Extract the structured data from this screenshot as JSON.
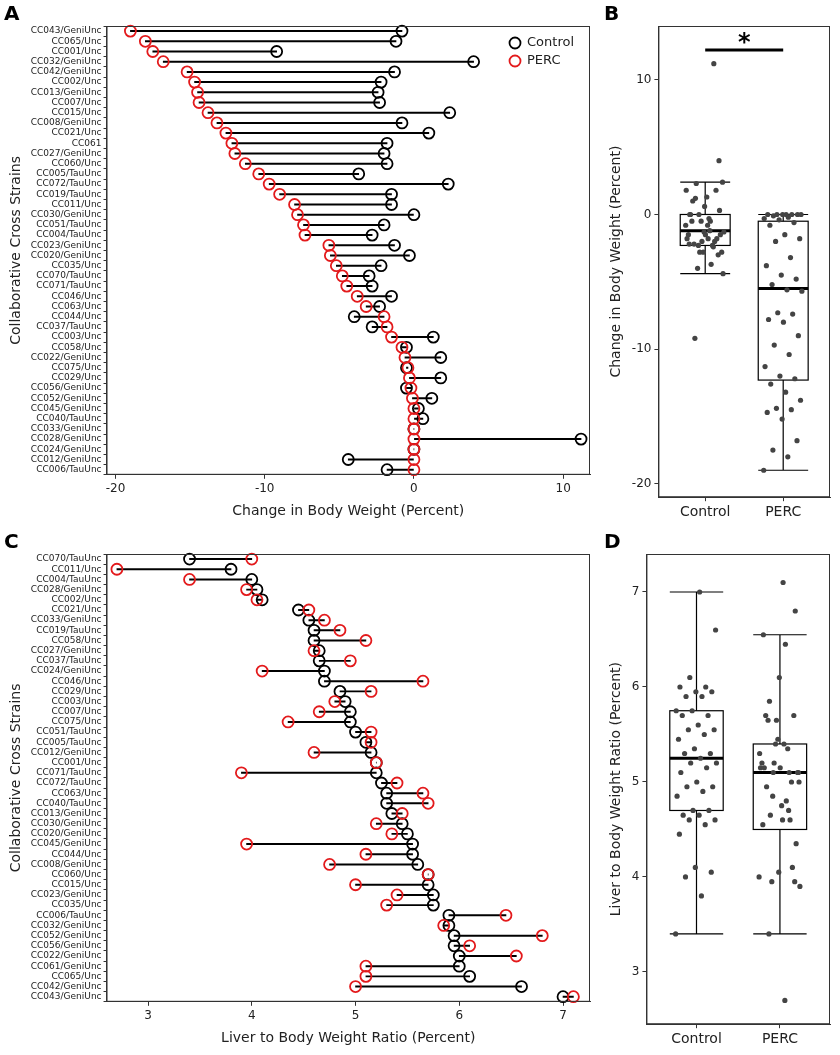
{
  "chart_data": [
    {
      "type": "dumbbell",
      "title": "A",
      "orientation": "horizontal",
      "grid": false,
      "legend": "upper right",
      "x_label": "Change in Body Weight (Percent)",
      "y_label": "Collaborative Cross Strains",
      "categories": [
        "CC043/GeniUnc",
        "CC065/Unc",
        "CC001/Unc",
        "CC032/GeniUnc",
        "CC042/GeniUnc",
        "CC002/Unc",
        "CC013/GeniUnc",
        "CC007/Unc",
        "CC015/Unc",
        "CC008/GeniUnc",
        "CC021/Unc",
        "CC061",
        "CC027/GeniUnc",
        "CC060/Unc",
        "CC005/TauUnc",
        "CC072/TauUnc",
        "CC019/TauUnc",
        "CC011/Unc",
        "CC030/GeniUnc",
        "CC051/TauUnc",
        "CC004/TauUnc",
        "CC023/GeniUnc",
        "CC020/GeniUnc",
        "CC035/Unc",
        "CC070/TauUnc",
        "CC071/TauUnc",
        "CC046/Unc",
        "CC063/Unc",
        "CC044/Unc",
        "CC037/TauUnc",
        "CC003/Unc",
        "CC058/Unc",
        "CC022/GeniUnc",
        "CC075/Unc",
        "CC029/Unc",
        "CC056/GeniUnc",
        "CC052/GeniUnc",
        "CC045/GeniUnc",
        "CC040/TauUnc",
        "CC033/GeniUnc",
        "CC028/GeniUnc",
        "CC024/GeniUnc",
        "CC012/GeniUnc",
        "CC006/TauUnc"
      ],
      "series": [
        {
          "name": "Control",
          "color": "#000000",
          "marker": "open circle",
          "values": [
            -0.8,
            -1.2,
            -9.2,
            4.0,
            -1.3,
            -2.2,
            -2.4,
            -2.3,
            2.4,
            -0.8,
            1.0,
            -1.8,
            -2.0,
            -1.8,
            -3.7,
            2.3,
            -1.5,
            -1.5,
            0.0,
            -2.0,
            -2.8,
            -1.3,
            -0.3,
            -2.2,
            -3.0,
            -2.8,
            -1.5,
            -2.3,
            -4.0,
            -2.8,
            1.3,
            -0.5,
            1.8,
            -0.5,
            1.8,
            -0.5,
            1.2,
            0.3,
            0.6,
            0.0,
            11.2,
            0.0,
            -4.4,
            -1.8
          ]
        },
        {
          "name": "PERC",
          "color": "#e31a1c",
          "marker": "open circle",
          "values": [
            -19.0,
            -18.0,
            -17.5,
            -16.8,
            -15.2,
            -14.7,
            -14.5,
            -14.4,
            -13.8,
            -13.2,
            -12.6,
            -12.2,
            -12.0,
            -11.3,
            -10.4,
            -9.7,
            -9.0,
            -8.0,
            -7.8,
            -7.4,
            -7.3,
            -5.7,
            -5.6,
            -5.2,
            -4.8,
            -4.5,
            -3.8,
            -3.2,
            -2.0,
            -1.8,
            -1.5,
            -0.8,
            -0.6,
            -0.4,
            -0.3,
            -0.2,
            -0.1,
            0.0,
            0.0,
            0.0,
            0.0,
            0.0,
            0.0,
            0.0
          ]
        }
      ],
      "xlim": [
        -20.6,
        11.8
      ],
      "xticks": [
        -20,
        -10,
        0,
        10
      ]
    },
    {
      "type": "box",
      "title": "B",
      "grid": false,
      "color": "#444444",
      "y_label": "Change in Body Weight (Percent)",
      "categories": [
        "Control",
        "PERC"
      ],
      "boxes": [
        {
          "whisker_low": -4.4,
          "q1": -2.3,
          "median": -1.2,
          "q3": 0.0,
          "whisker_high": 2.4,
          "points": [
            -0.8,
            -1.2,
            -9.2,
            4.0,
            -1.3,
            -2.2,
            -2.4,
            -2.3,
            2.4,
            -0.8,
            1.0,
            -1.8,
            -2.0,
            -1.8,
            -3.7,
            2.3,
            -1.5,
            -1.5,
            0.0,
            -2.0,
            -2.8,
            -1.3,
            -0.3,
            -2.2,
            -3.0,
            -2.8,
            -1.5,
            -2.3,
            -4.0,
            -2.8,
            1.3,
            -0.5,
            1.8,
            -0.5,
            1.8,
            -0.5,
            1.2,
            0.3,
            0.6,
            0.0,
            11.2,
            0.0,
            -4.4,
            -1.8
          ]
        },
        {
          "whisker_low": -19.0,
          "q1": -12.3,
          "median": -5.5,
          "q3": -0.5,
          "whisker_high": 0.0,
          "points": [
            -19.0,
            -18.0,
            -17.5,
            -16.8,
            -15.2,
            -14.7,
            -14.5,
            -14.4,
            -13.8,
            -13.2,
            -12.6,
            -12.2,
            -12.0,
            -11.3,
            -10.4,
            -9.7,
            -9.0,
            -8.0,
            -7.8,
            -7.4,
            -7.3,
            -5.7,
            -5.6,
            -5.2,
            -4.8,
            -4.5,
            -3.8,
            -3.2,
            -2.0,
            -1.8,
            -1.5,
            -0.8,
            -0.6,
            -0.4,
            -0.3,
            -0.2,
            -0.1,
            0.0,
            0.0,
            0.0,
            0.0,
            0.0,
            0.0,
            0.0
          ]
        }
      ],
      "annotations": [
        {
          "text": "*",
          "from": "Control",
          "to": "PERC"
        }
      ],
      "ylim": [
        -21,
        14
      ],
      "yticks": [
        -20,
        -10,
        0,
        10
      ]
    },
    {
      "type": "dumbbell",
      "title": "C",
      "orientation": "horizontal",
      "grid": false,
      "x_label": "Liver to Body Weight Ratio (Percent)",
      "y_label": "Collaborative Cross Strains",
      "categories": [
        "CC070/TauUnc",
        "CC011/Unc",
        "CC004/TauUnc",
        "CC028/GeniUnc",
        "CC002/Unc",
        "CC021/Unc",
        "CC033/GeniUnc",
        "CC019/TauUnc",
        "CC058/Unc",
        "CC027/GeniUnc",
        "CC037/TauUnc",
        "CC024/GeniUnc",
        "CC046/Unc",
        "CC029/Unc",
        "CC003/Unc",
        "CC007/Unc",
        "CC075/Unc",
        "CC051/TauUnc",
        "CC005/TauUnc",
        "CC012/GeniUnc",
        "CC001/Unc",
        "CC071/TauUnc",
        "CC072/TauUnc",
        "CC063/Unc",
        "CC040/TauUnc",
        "CC013/GeniUnc",
        "CC030/GeniUnc",
        "CC020/GeniUnc",
        "CC045/GeniUnc",
        "CC044/Unc",
        "CC008/GeniUnc",
        "CC060/Unc",
        "CC015/Unc",
        "CC023/GeniUnc",
        "CC035/Unc",
        "CC006/TauUnc",
        "CC032/GeniUnc",
        "CC052/GeniUnc",
        "CC056/GeniUnc",
        "CC022/GeniUnc",
        "CC061/GeniUnc",
        "CC065/Unc",
        "CC042/GeniUnc",
        "CC043/GeniUnc"
      ],
      "series": [
        {
          "name": "Control",
          "color": "#000000",
          "marker": "open circle",
          "values": [
            3.4,
            3.8,
            4.0,
            4.05,
            4.1,
            4.45,
            4.55,
            4.6,
            4.6,
            4.65,
            4.65,
            4.7,
            4.7,
            4.85,
            4.9,
            4.95,
            4.95,
            5.0,
            5.1,
            5.15,
            5.2,
            5.2,
            5.25,
            5.3,
            5.3,
            5.35,
            5.45,
            5.5,
            5.55,
            5.55,
            5.6,
            5.7,
            5.7,
            5.75,
            5.75,
            5.9,
            5.9,
            5.95,
            5.95,
            6.0,
            6.0,
            6.1,
            6.6,
            7.0
          ]
        },
        {
          "name": "PERC",
          "color": "#e31a1c",
          "marker": "open circle",
          "values": [
            4.0,
            2.7,
            3.4,
            3.95,
            4.05,
            4.55,
            4.7,
            4.85,
            5.1,
            4.6,
            4.95,
            4.1,
            5.65,
            5.15,
            4.8,
            4.65,
            4.35,
            5.15,
            5.15,
            4.6,
            5.2,
            3.9,
            5.4,
            5.65,
            5.7,
            5.45,
            5.2,
            5.35,
            3.95,
            5.1,
            4.75,
            5.7,
            5.0,
            5.4,
            5.3,
            6.45,
            5.85,
            6.8,
            6.1,
            6.55,
            5.1,
            5.1,
            5.0,
            7.1
          ]
        }
      ],
      "xlim": [
        2.6,
        7.26
      ],
      "xticks": [
        3,
        4,
        5,
        6,
        7
      ]
    },
    {
      "type": "box",
      "title": "D",
      "grid": false,
      "color": "#444444",
      "y_label": "Liver to Body Weight Ratio (Percent)",
      "categories": [
        "Control",
        "PERC"
      ],
      "boxes": [
        {
          "whisker_low": 3.4,
          "q1": 4.7,
          "median": 5.25,
          "q3": 5.75,
          "whisker_high": 7.0,
          "points": [
            3.4,
            3.8,
            4.0,
            4.05,
            4.1,
            4.45,
            4.55,
            4.6,
            4.6,
            4.65,
            4.65,
            4.7,
            4.7,
            4.85,
            4.9,
            4.95,
            4.95,
            5.0,
            5.1,
            5.15,
            5.2,
            5.2,
            5.25,
            5.3,
            5.3,
            5.35,
            5.45,
            5.5,
            5.55,
            5.55,
            5.6,
            5.7,
            5.7,
            5.75,
            5.75,
            5.9,
            5.9,
            5.95,
            5.95,
            6.0,
            6.0,
            6.1,
            6.6,
            7.0
          ]
        },
        {
          "whisker_low": 3.4,
          "q1": 4.5,
          "median": 5.1,
          "q3": 5.4,
          "whisker_high": 6.55,
          "points": [
            4.0,
            2.7,
            3.4,
            3.95,
            4.05,
            4.55,
            4.7,
            4.85,
            5.1,
            4.6,
            4.95,
            4.1,
            5.65,
            5.15,
            4.8,
            4.65,
            4.35,
            5.15,
            5.15,
            4.6,
            5.2,
            3.9,
            5.4,
            5.65,
            5.7,
            5.45,
            5.2,
            5.35,
            3.95,
            5.1,
            4.75,
            5.7,
            5.0,
            5.4,
            5.3,
            6.45,
            5.85,
            6.8,
            6.1,
            6.55,
            5.1,
            5.1,
            5.0,
            7.1
          ]
        }
      ],
      "ylim": [
        2.45,
        7.4
      ],
      "yticks": [
        3,
        4,
        5,
        6,
        7
      ]
    }
  ]
}
